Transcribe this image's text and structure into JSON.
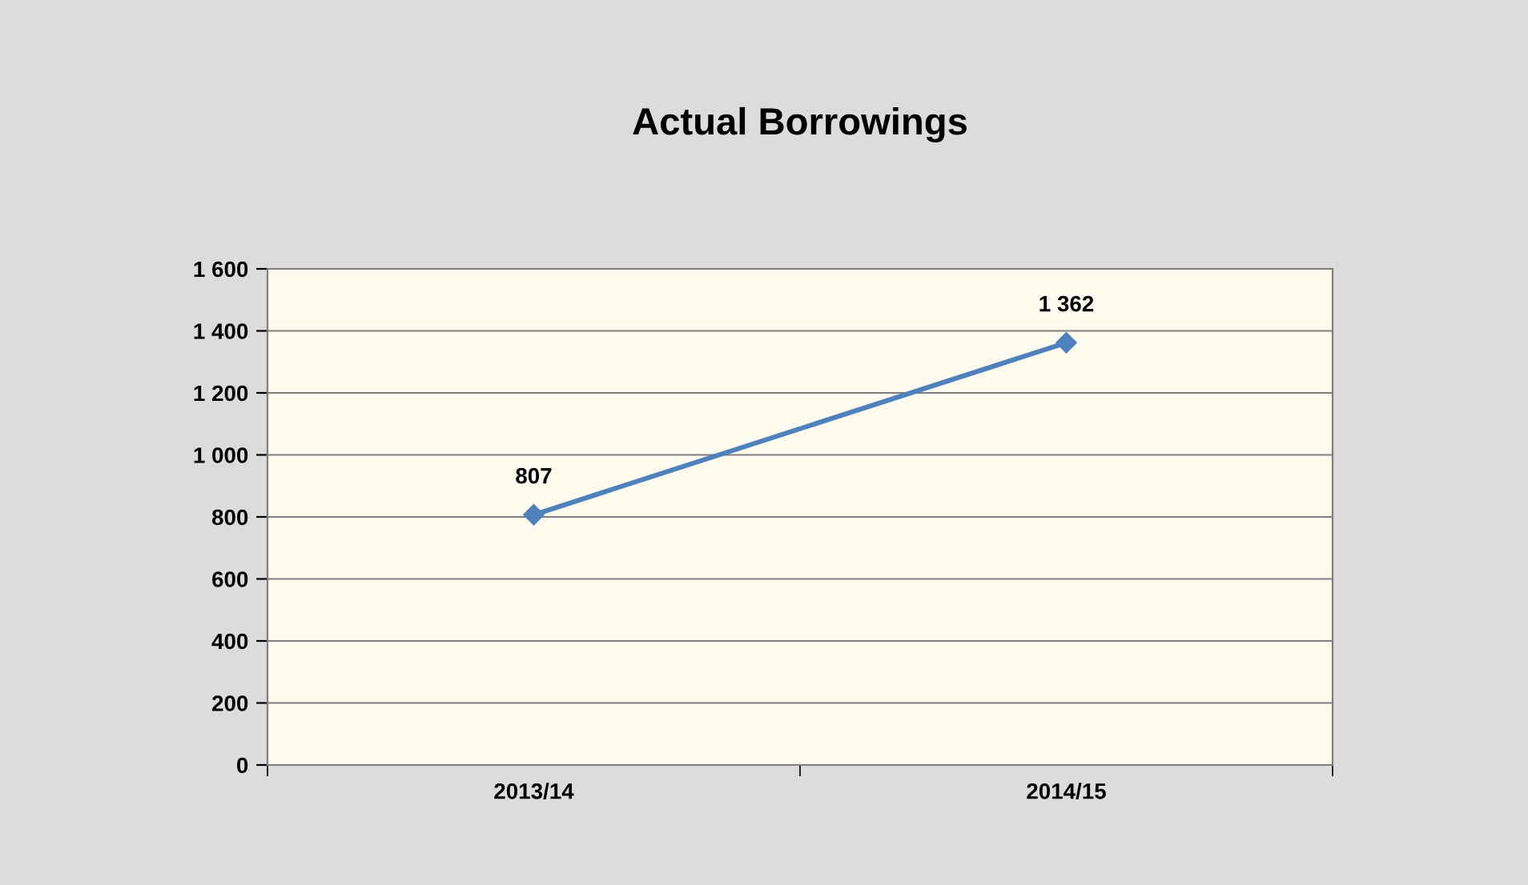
{
  "chart_data": {
    "type": "line",
    "title": "Actual Borrowings",
    "categories": [
      "2013/14",
      "2014/15"
    ],
    "series": [
      {
        "color": "#4f81bd",
        "values": [
          807,
          1362
        ],
        "value_labels": [
          "807",
          "1 362"
        ]
      }
    ],
    "ylim": [
      0,
      1600
    ],
    "yticks": [
      0,
      200,
      400,
      600,
      800,
      {
        "value": 1000,
        "label": "1 000"
      },
      {
        "value": 1200,
        "label": "1 200"
      },
      {
        "value": 1400,
        "label": "1 400"
      },
      {
        "value": 1600,
        "label": "1 600"
      }
    ],
    "grid": "y",
    "marker": "diamond",
    "line_style": "solid",
    "legend": false
  }
}
